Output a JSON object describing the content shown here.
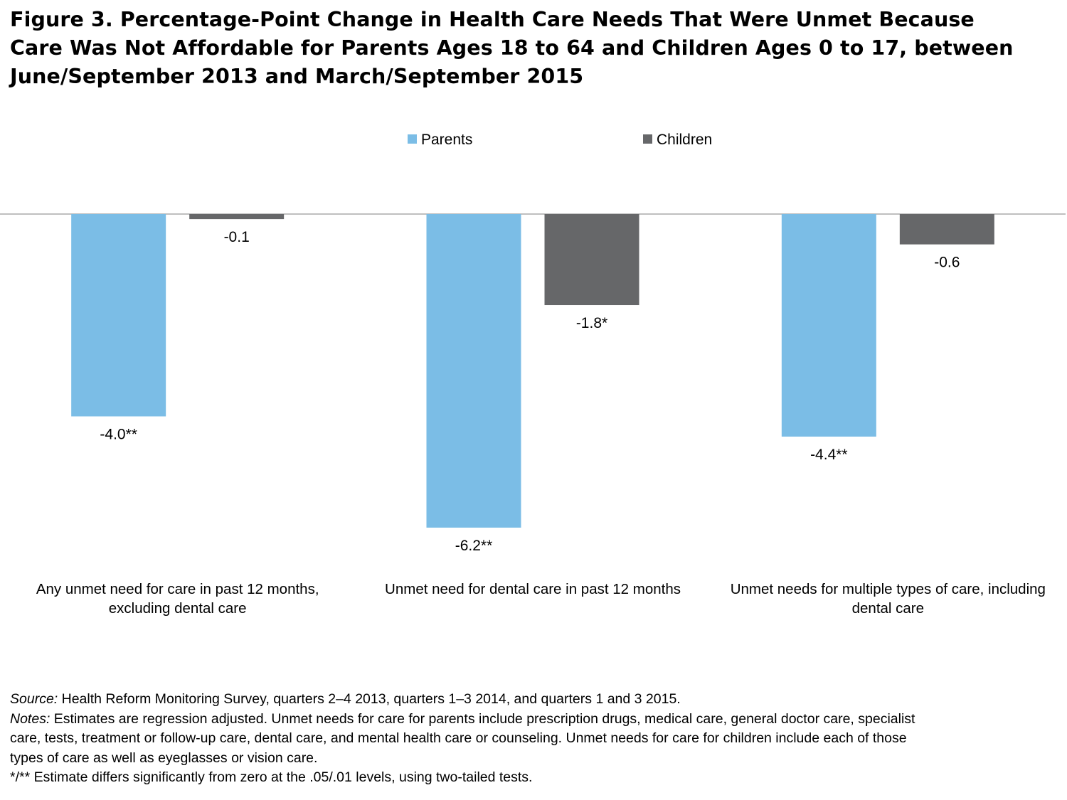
{
  "title_lines": [
    "Figure 3. Percentage-Point Change in Health Care Needs That Were Unmet Because",
    "Care Was Not Affordable for Parents Ages 18 to 64 and Children Ages 0 to 17, between",
    "June/September 2013 and March/September 2015"
  ],
  "chart_data": {
    "type": "bar",
    "categories": [
      [
        "Any unmet need for care in past 12 months,",
        "excluding dental care"
      ],
      [
        "Unmet need for dental care in past 12 months"
      ],
      [
        "Unmet needs for multiple types of care, including",
        "dental care"
      ]
    ],
    "series": [
      {
        "name": "Parents",
        "color": "#7bbde6",
        "values": [
          -4.0,
          -6.2,
          -4.4
        ],
        "labels": [
          "-4.0**",
          "-6.2**",
          "-4.4**"
        ]
      },
      {
        "name": "Children",
        "color": "#666769",
        "values": [
          -0.1,
          -1.8,
          -0.6
        ],
        "labels": [
          "-0.1",
          "-1.8*",
          "-0.6"
        ]
      }
    ],
    "ylim": [
      -6.2,
      0
    ],
    "grid": false,
    "legend_position": "top-center",
    "axis_color": "#999999"
  },
  "footnotes": {
    "source_label": "Source:",
    "source_text": "  Health Reform Monitoring Survey, quarters 2–4 2013, quarters 1–3 2014, and quarters 1 and 3 2015.",
    "notes_label": "Notes:",
    "notes_lines": [
      " Estimates are regression adjusted.  Unmet needs for care for parents include prescription drugs, medical care, general doctor care, specialist",
      "care, tests, treatment or follow-up care, dental care, and mental health care or counseling.  Unmet needs for care for children include each of those",
      "types of care as well as eyeglasses or vision care."
    ],
    "significance": "*/** Estimate differs significantly from zero at the .05/.01 levels, using two-tailed tests."
  }
}
